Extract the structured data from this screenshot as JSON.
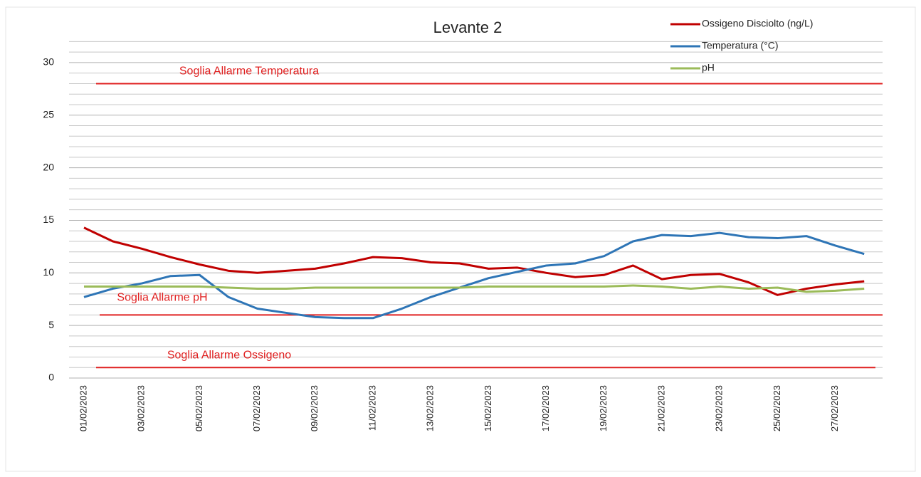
{
  "chart_data": {
    "type": "line",
    "title": "Levante 2",
    "categories": [
      "01/02/2023",
      null,
      "03/02/2023",
      null,
      "05/02/2023",
      null,
      "07/02/2023",
      null,
      "09/02/2023",
      null,
      "11/02/2023",
      null,
      "13/02/2023",
      null,
      "15/02/2023",
      null,
      "17/02/2023",
      null,
      "19/02/2023",
      null,
      "21/02/2023",
      null,
      "23/02/2023",
      null,
      "25/02/2023",
      null,
      "27/02/2023",
      null
    ],
    "series": [
      {
        "name": "Ossigeno  Disciolto (ng/L)",
        "color": "#c00000",
        "values": [
          14.3,
          13.0,
          12.3,
          11.5,
          10.8,
          10.2,
          10.0,
          10.2,
          10.4,
          10.9,
          11.5,
          11.4,
          11.0,
          10.9,
          10.4,
          10.5,
          10.0,
          9.6,
          9.8,
          10.7,
          9.4,
          9.8,
          9.9,
          9.1,
          7.9,
          8.5,
          8.9,
          9.2
        ]
      },
      {
        "name": "Temperatura (°C)",
        "color": "#2e75b6",
        "values": [
          7.7,
          8.5,
          9.0,
          9.7,
          9.8,
          7.7,
          6.6,
          6.2,
          5.8,
          5.7,
          5.7,
          6.6,
          7.7,
          8.6,
          9.5,
          10.1,
          10.7,
          10.9,
          11.6,
          13.0,
          13.6,
          13.5,
          13.8,
          13.4,
          13.3,
          13.5,
          12.6,
          11.8
        ]
      },
      {
        "name": "pH",
        "color": "#9bbb59",
        "values": [
          8.7,
          8.7,
          8.7,
          8.7,
          8.7,
          8.6,
          8.5,
          8.5,
          8.6,
          8.6,
          8.6,
          8.6,
          8.6,
          8.6,
          8.7,
          8.7,
          8.7,
          8.7,
          8.7,
          8.8,
          8.7,
          8.5,
          8.7,
          8.5,
          8.6,
          8.2,
          8.3,
          8.5
        ]
      }
    ],
    "thresholds": [
      {
        "label": "Soglia Allarme Temperatura",
        "value": 28
      },
      {
        "label": "Soglia  Allarme pH",
        "value": 6
      },
      {
        "label": "Soglia  Allarme Ossigeno",
        "value": 1
      }
    ],
    "threshold_color": "#e02020",
    "ylim": [
      0,
      32
    ],
    "yticks": [
      0,
      5,
      10,
      15,
      20,
      25,
      30
    ],
    "grid": true,
    "minor_grid": true,
    "legend": "top-right"
  }
}
